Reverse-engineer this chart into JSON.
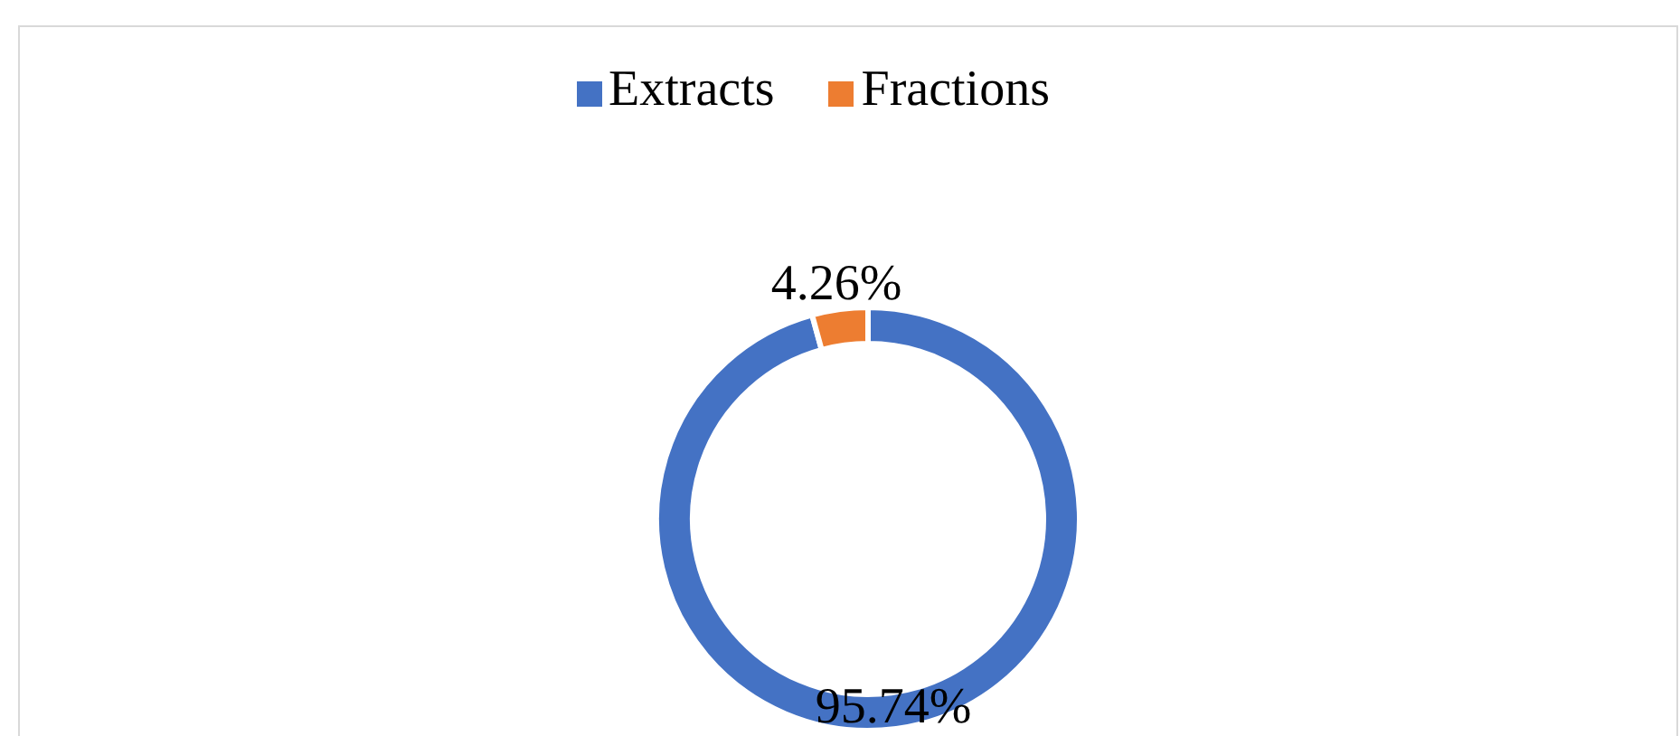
{
  "chart_data": {
    "type": "donut",
    "categories": [
      "Extracts",
      "Fractions"
    ],
    "values": [
      95.74,
      4.26
    ],
    "colors": [
      "#4472c4",
      "#ed7d31"
    ],
    "value_labels": [
      "95.74%",
      "4.26%"
    ],
    "legend": "top"
  }
}
